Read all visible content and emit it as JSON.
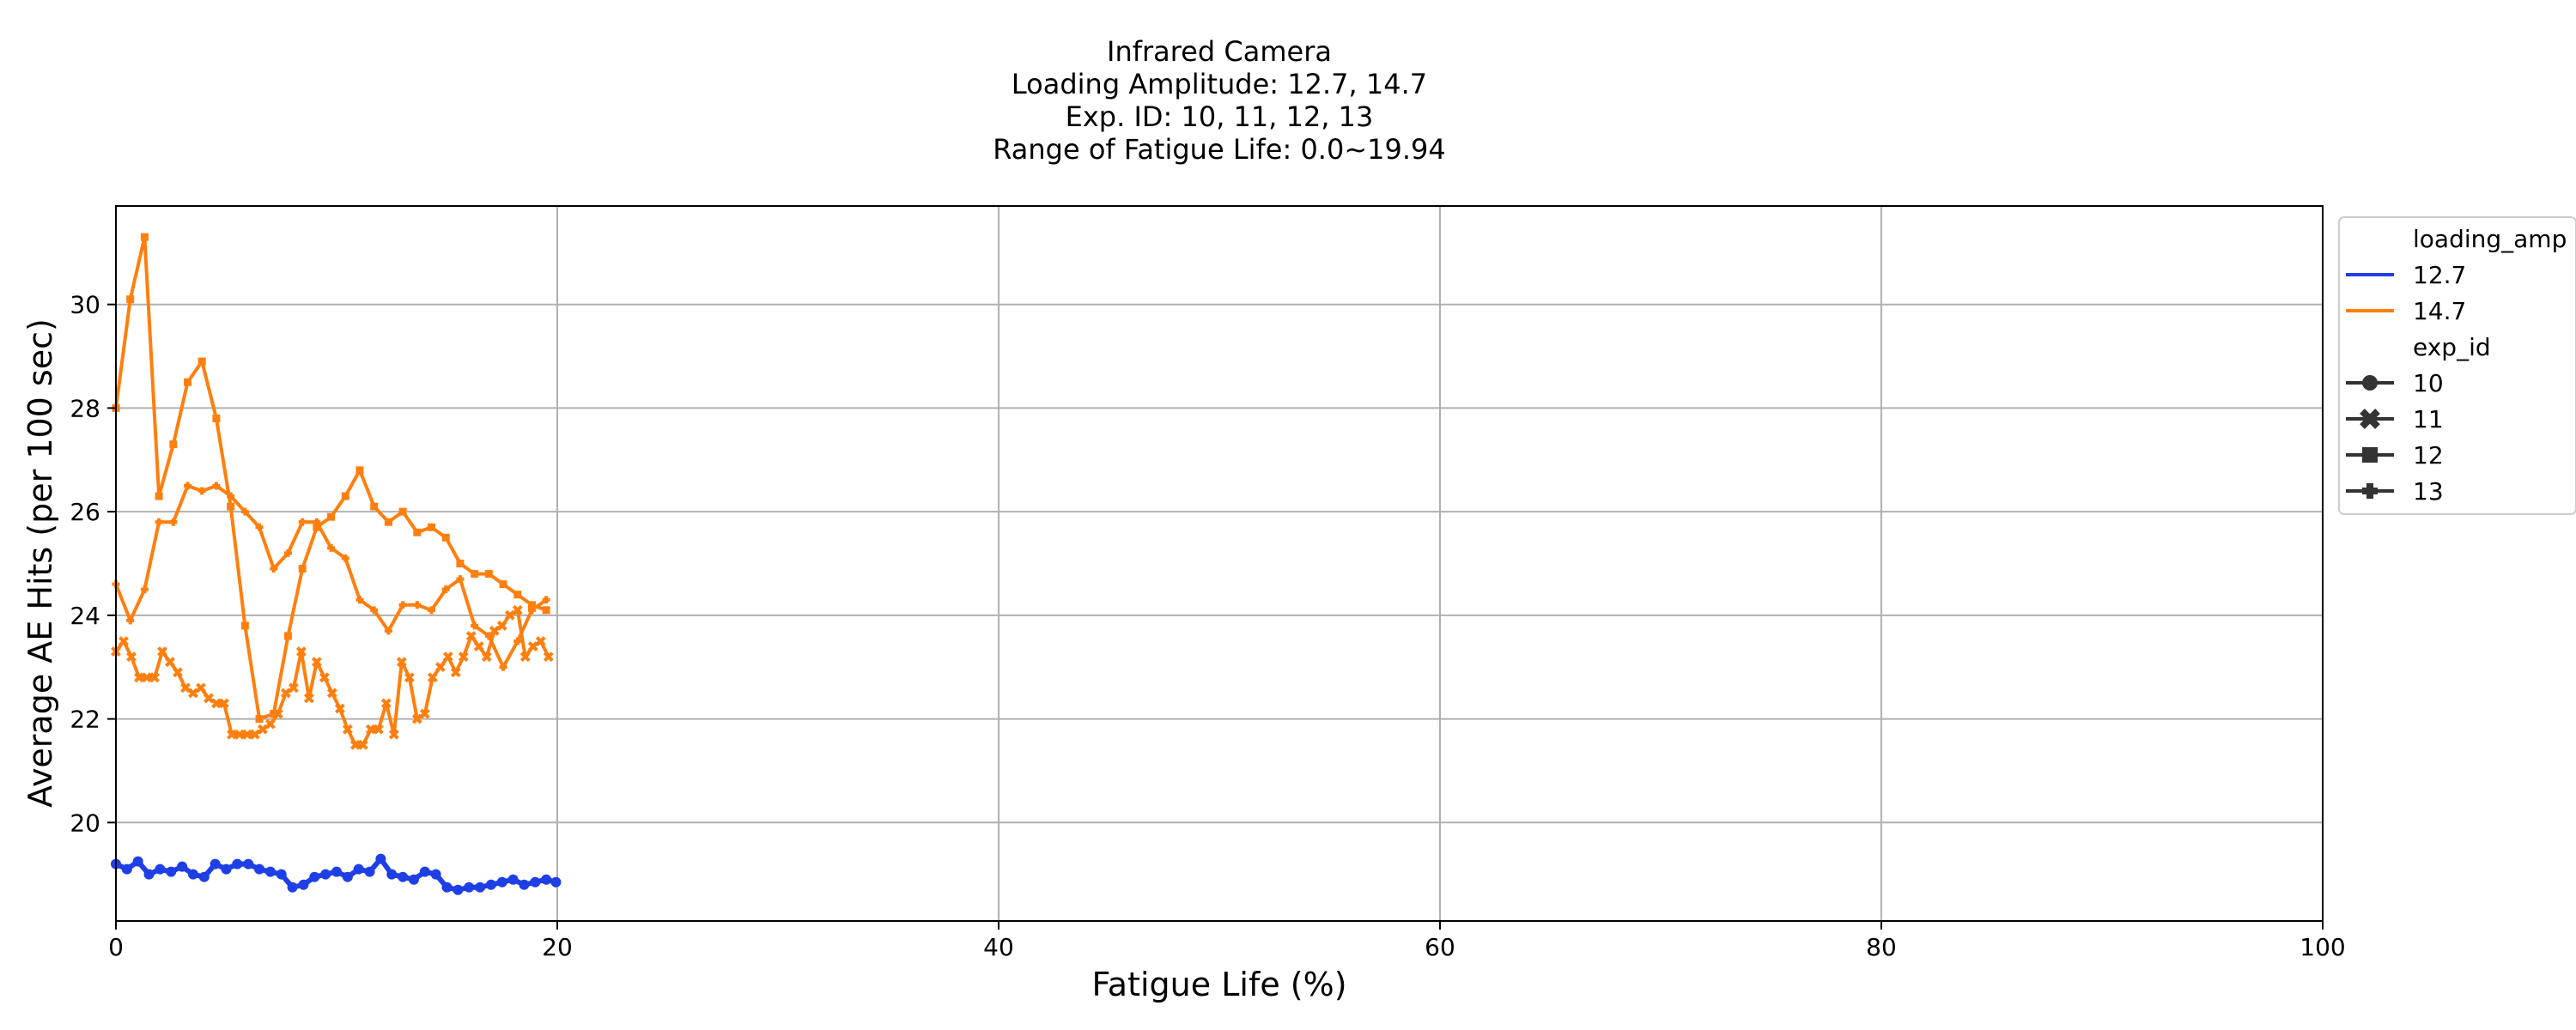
{
  "chart_data": {
    "type": "line",
    "title_lines": [
      "Infrared Camera",
      "Loading Amplitude: 12.7, 14.7",
      "Exp. ID: 10, 11, 12, 13",
      "Range of Fatigue Life: 0.0~19.94"
    ],
    "xlabel": "Fatigue Life (%)",
    "ylabel": "Average AE Hits (per 100 sec)",
    "xlim": [
      0,
      100
    ],
    "ylim": [
      18.1,
      31.9
    ],
    "xticks": [
      0,
      20,
      40,
      60,
      80,
      100
    ],
    "yticks": [
      20,
      22,
      24,
      26,
      28,
      30
    ],
    "grid": true,
    "legend_position": "outside-right-top",
    "legend": {
      "hue_title": "loading_amp",
      "hue_entries": [
        {
          "label": "12.7",
          "color": "#1f3fe6"
        },
        {
          "label": "14.7",
          "color": "#ff7f0e"
        }
      ],
      "style_title": "exp_id",
      "style_entries": [
        {
          "label": "10",
          "marker": "circle"
        },
        {
          "label": "11",
          "marker": "x"
        },
        {
          "label": "12",
          "marker": "square"
        },
        {
          "label": "13",
          "marker": "plus"
        }
      ]
    },
    "series": [
      {
        "loading_amp": "14.7",
        "exp_id": "11",
        "color": "#ff7f0e",
        "marker": "x",
        "x": [
          0,
          0.35,
          0.7,
          1.05,
          1.4,
          1.75,
          2.1,
          2.45,
          2.8,
          3.15,
          3.5,
          3.85,
          4.2,
          4.55,
          4.9,
          5.25,
          5.6,
          5.95,
          6.3,
          6.65,
          7.0,
          7.35,
          7.7,
          8.05,
          8.4,
          8.75,
          9.1,
          9.45,
          9.8,
          10.15,
          10.5,
          10.85,
          11.2,
          11.55,
          11.9,
          12.25,
          12.6,
          12.95,
          13.3,
          13.65,
          14.0,
          14.35,
          14.7,
          15.05,
          15.4,
          15.75,
          16.1,
          16.45,
          16.8,
          17.15,
          17.5,
          17.85,
          18.2,
          18.55,
          18.9,
          19.25,
          19.6
        ],
        "y": [
          23.3,
          23.5,
          23.2,
          22.8,
          22.8,
          22.8,
          23.3,
          23.1,
          22.9,
          22.6,
          22.5,
          22.6,
          22.4,
          22.3,
          22.3,
          21.7,
          21.7,
          21.7,
          21.7,
          21.8,
          21.9,
          22.1,
          22.5,
          22.6,
          23.3,
          22.4,
          23.1,
          22.8,
          22.5,
          22.2,
          21.8,
          21.5,
          21.5,
          21.8,
          21.8,
          22.3,
          21.7,
          23.1,
          22.8,
          22.0,
          22.1,
          22.8,
          23.0,
          23.2,
          22.9,
          23.2,
          23.6,
          23.4,
          23.2,
          23.7,
          23.8,
          24.0,
          24.1,
          23.2,
          23.4,
          23.5,
          23.2
        ]
      },
      {
        "loading_amp": "14.7",
        "exp_id": "12",
        "color": "#ff7f0e",
        "marker": "square",
        "x": [
          0,
          0.65,
          1.3,
          1.95,
          2.6,
          3.25,
          3.9,
          4.55,
          5.2,
          5.85,
          6.5,
          7.15,
          7.8,
          8.45,
          9.1,
          9.75,
          10.4,
          11.05,
          11.7,
          12.35,
          13.0,
          13.65,
          14.3,
          14.95,
          15.6,
          16.25,
          16.9,
          17.55,
          18.2,
          18.85,
          19.5
        ],
        "y": [
          28.0,
          30.1,
          31.3,
          26.3,
          27.3,
          28.5,
          28.9,
          27.8,
          26.1,
          23.8,
          22.0,
          22.1,
          23.6,
          24.9,
          25.7,
          25.9,
          26.3,
          26.8,
          26.1,
          25.8,
          26.0,
          25.6,
          25.7,
          25.5,
          25.0,
          24.8,
          24.8,
          24.6,
          24.4,
          24.2,
          24.1
        ]
      },
      {
        "loading_amp": "14.7",
        "exp_id": "13",
        "color": "#ff7f0e",
        "marker": "plus",
        "x": [
          0,
          0.65,
          1.3,
          1.95,
          2.6,
          3.25,
          3.9,
          4.55,
          5.2,
          5.85,
          6.5,
          7.15,
          7.8,
          8.45,
          9.1,
          9.75,
          10.4,
          11.05,
          11.7,
          12.35,
          13.0,
          13.65,
          14.3,
          14.95,
          15.6,
          16.25,
          16.9,
          17.55,
          18.2,
          18.85,
          19.5
        ],
        "y": [
          24.6,
          23.9,
          24.5,
          25.8,
          25.8,
          26.5,
          26.4,
          26.5,
          26.3,
          26.0,
          25.7,
          24.9,
          25.2,
          25.8,
          25.8,
          25.3,
          25.1,
          24.3,
          24.1,
          23.7,
          24.2,
          24.2,
          24.1,
          24.5,
          24.7,
          23.8,
          23.6,
          23.0,
          23.5,
          24.1,
          24.3
        ]
      }
    ],
    "series_127": {
      "loading_amp": "12.7",
      "color": "#1f3fe6",
      "marker": "circle",
      "x": [
        0,
        0.5,
        1.0,
        1.5,
        2.0,
        2.5,
        3.0,
        3.5,
        4.0,
        4.5,
        5.0,
        5.5,
        6.0,
        6.5,
        7.0,
        7.5,
        8.0,
        8.5,
        9.0,
        9.5,
        10.0,
        10.5,
        11.0,
        11.5,
        12.0,
        12.5,
        13.0,
        13.5,
        14.0,
        14.5,
        15.0,
        15.5,
        16.0,
        16.5,
        17.0,
        17.5,
        18.0,
        18.5,
        19.0,
        19.5,
        19.94
      ],
      "y": [
        19.2,
        19.1,
        19.25,
        19.0,
        19.1,
        19.05,
        19.15,
        19.0,
        18.95,
        19.2,
        19.1,
        19.2,
        19.2,
        19.1,
        19.05,
        19.0,
        18.75,
        18.8,
        18.95,
        19.0,
        19.05,
        18.95,
        19.1,
        19.05,
        19.3,
        19.0,
        18.95,
        18.9,
        19.05,
        19.0,
        18.75,
        18.7,
        18.75,
        18.75,
        18.8,
        18.85,
        18.9,
        18.8,
        18.85,
        18.9,
        18.85
      ]
    }
  }
}
